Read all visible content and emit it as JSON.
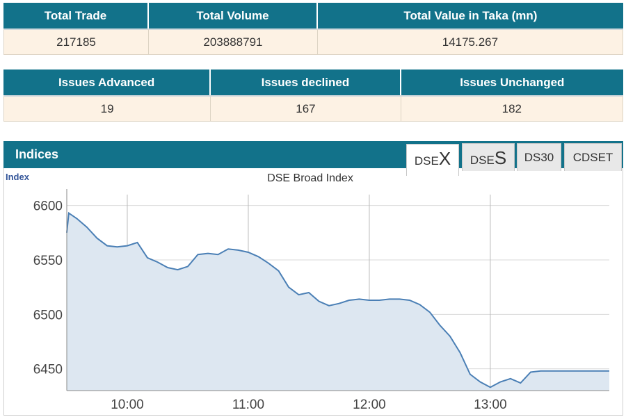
{
  "summary": {
    "headers": [
      "Total Trade",
      "Total Volume",
      "Total Value in Taka (mn)"
    ],
    "values": [
      "217185",
      "203888791",
      "14175.267"
    ]
  },
  "issues": {
    "headers": [
      "Issues Advanced",
      "Issues declined",
      "Issues Unchanged"
    ],
    "values": [
      "19",
      "167",
      "182"
    ]
  },
  "indices": {
    "title": "Indices",
    "tabs": [
      {
        "prefix": "DSE",
        "suffix": "X",
        "active": true
      },
      {
        "prefix": "DSE",
        "suffix": "S",
        "active": false
      },
      {
        "label": "DS30",
        "active": false
      },
      {
        "label": "CDSET",
        "active": false
      }
    ]
  },
  "colors": {
    "header_bg": "#12728a",
    "cell_bg": "#fdf2e4",
    "line": "#4a7fb5",
    "area": "#dde7f1"
  },
  "chart_data": {
    "type": "area",
    "title": "DSE Broad Index",
    "ylabel": "Index",
    "xlabel": "",
    "yticks": [
      "6600",
      "6550",
      "6500",
      "6450"
    ],
    "xticks": [
      "10:00",
      "11:00",
      "12:00",
      "13:00"
    ],
    "ylim": [
      6430,
      6610
    ],
    "xlim": [
      "09:30",
      "13:59"
    ],
    "series": [
      {
        "x": [
          "09:30",
          "09:31",
          "09:35",
          "09:40",
          "09:45",
          "09:50",
          "09:55",
          "10:00",
          "10:05",
          "10:10",
          "10:15",
          "10:20",
          "10:25",
          "10:30",
          "10:35",
          "10:40",
          "10:45",
          "10:50",
          "10:55",
          "11:00",
          "11:05",
          "11:10",
          "11:15",
          "11:20",
          "11:25",
          "11:30",
          "11:35",
          "11:40",
          "11:45",
          "11:50",
          "11:55",
          "12:00",
          "12:05",
          "12:10",
          "12:15",
          "12:20",
          "12:25",
          "12:30",
          "12:35",
          "12:40",
          "12:45",
          "12:50",
          "12:55",
          "13:00",
          "13:05",
          "13:10",
          "13:15",
          "13:20",
          "13:25",
          "13:30",
          "13:32",
          "13:35",
          "13:40",
          "13:45",
          "13:48",
          "13:50",
          "13:59"
        ],
        "values": [
          6575,
          6593,
          6588,
          6580,
          6570,
          6563,
          6562,
          6563,
          6566,
          6552,
          6548,
          6543,
          6541,
          6544,
          6555,
          6556,
          6555,
          6560,
          6559,
          6557,
          6553,
          6547,
          6540,
          6525,
          6518,
          6520,
          6512,
          6508,
          6510,
          6513,
          6514,
          6513,
          6513,
          6514,
          6514,
          6513,
          6509,
          6502,
          6490,
          6480,
          6465,
          6445,
          6438,
          6433,
          6438,
          6441,
          6437,
          6447,
          6448,
          6448,
          6448,
          6448,
          6448,
          6448,
          6448,
          6448,
          6448
        ]
      }
    ]
  }
}
